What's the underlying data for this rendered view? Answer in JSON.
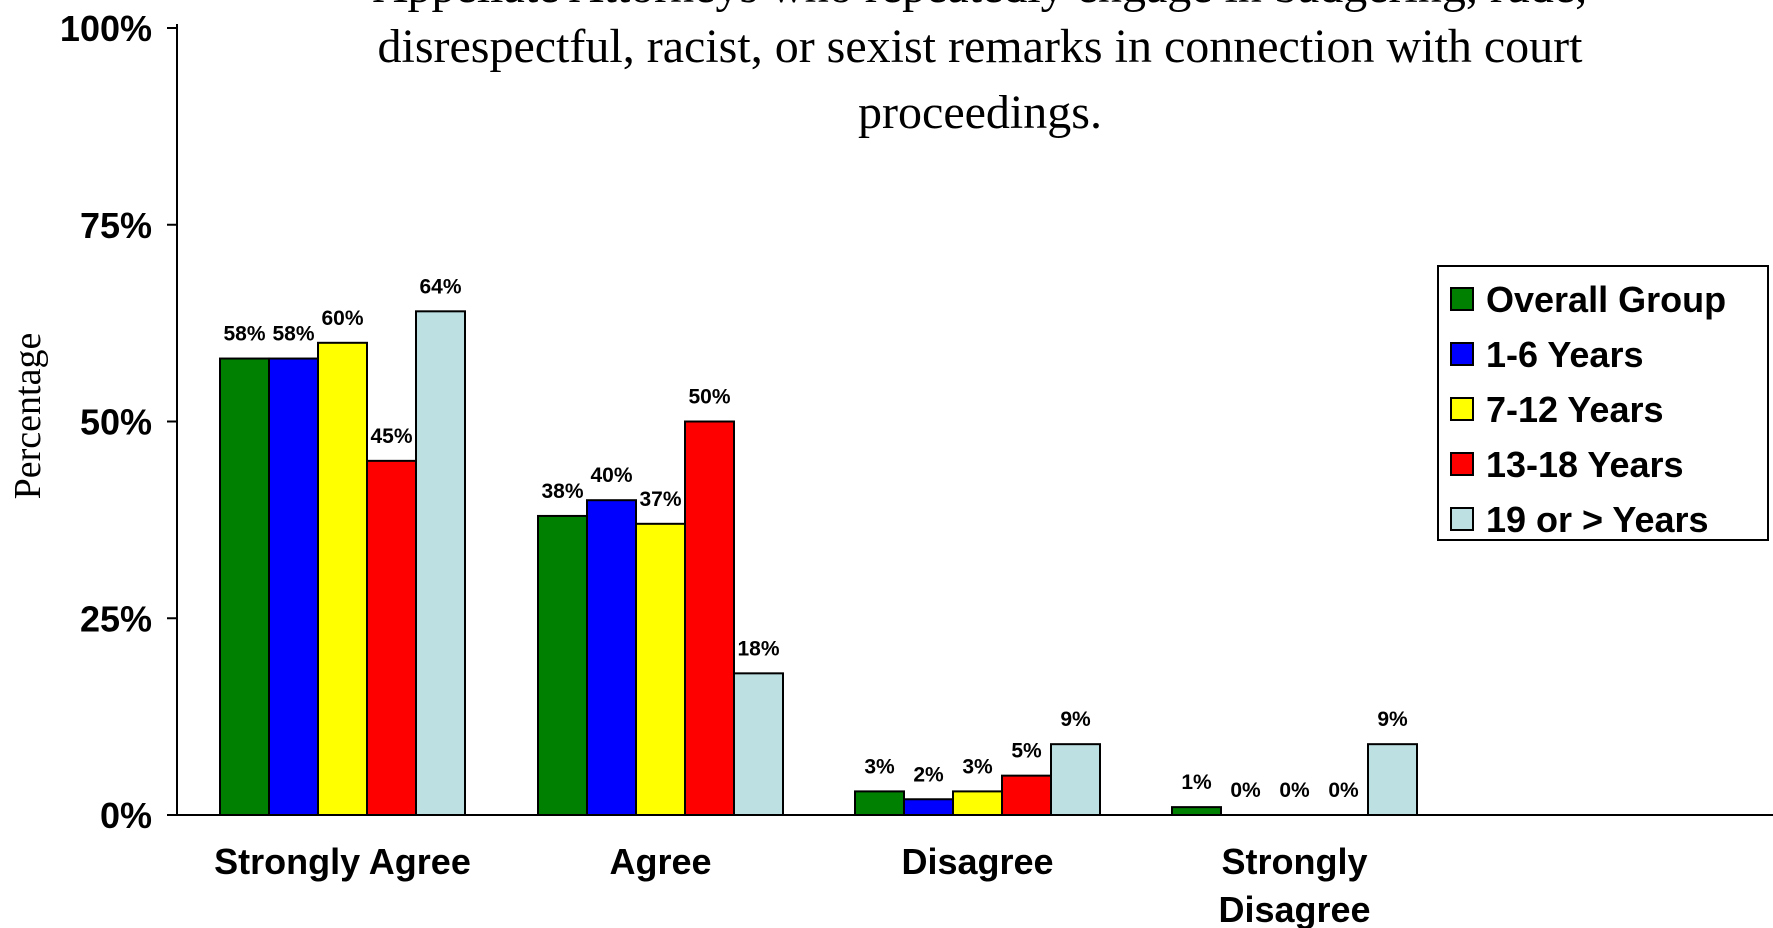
{
  "chart_data": {
    "type": "bar",
    "title_lines": [
      "Appellate Attorneys who repeatedly engage in badgering, rude,",
      "disrespectful, racist, or sexist remarks in connection with court",
      "proceedings."
    ],
    "ylabel": "Percentage",
    "xlabel": "",
    "ylim": [
      0,
      100
    ],
    "yticks": [
      "0%",
      "25%",
      "50%",
      "75%",
      "100%"
    ],
    "ytick_values": [
      0,
      25,
      50,
      75,
      100
    ],
    "categories": [
      [
        "Strongly Agree"
      ],
      [
        "Agree"
      ],
      [
        "Disagree"
      ],
      [
        "Strongly",
        "Disagree"
      ]
    ],
    "series": [
      {
        "name": "Overall Group",
        "color": "#008000",
        "values": [
          58,
          38,
          3,
          1
        ]
      },
      {
        "name": "1-6 Years",
        "color": "#0000ff",
        "values": [
          58,
          40,
          2,
          0
        ]
      },
      {
        "name": "7-12 Years",
        "color": "#ffff00",
        "values": [
          60,
          37,
          3,
          0
        ]
      },
      {
        "name": "13-18 Years",
        "color": "#ff0000",
        "values": [
          45,
          50,
          5,
          0
        ]
      },
      {
        "name": "19 or > Years",
        "color": "#bde0e2",
        "values": [
          64,
          18,
          9,
          9
        ]
      }
    ],
    "value_suffix": "%",
    "legend_position": "right",
    "grid": false
  }
}
